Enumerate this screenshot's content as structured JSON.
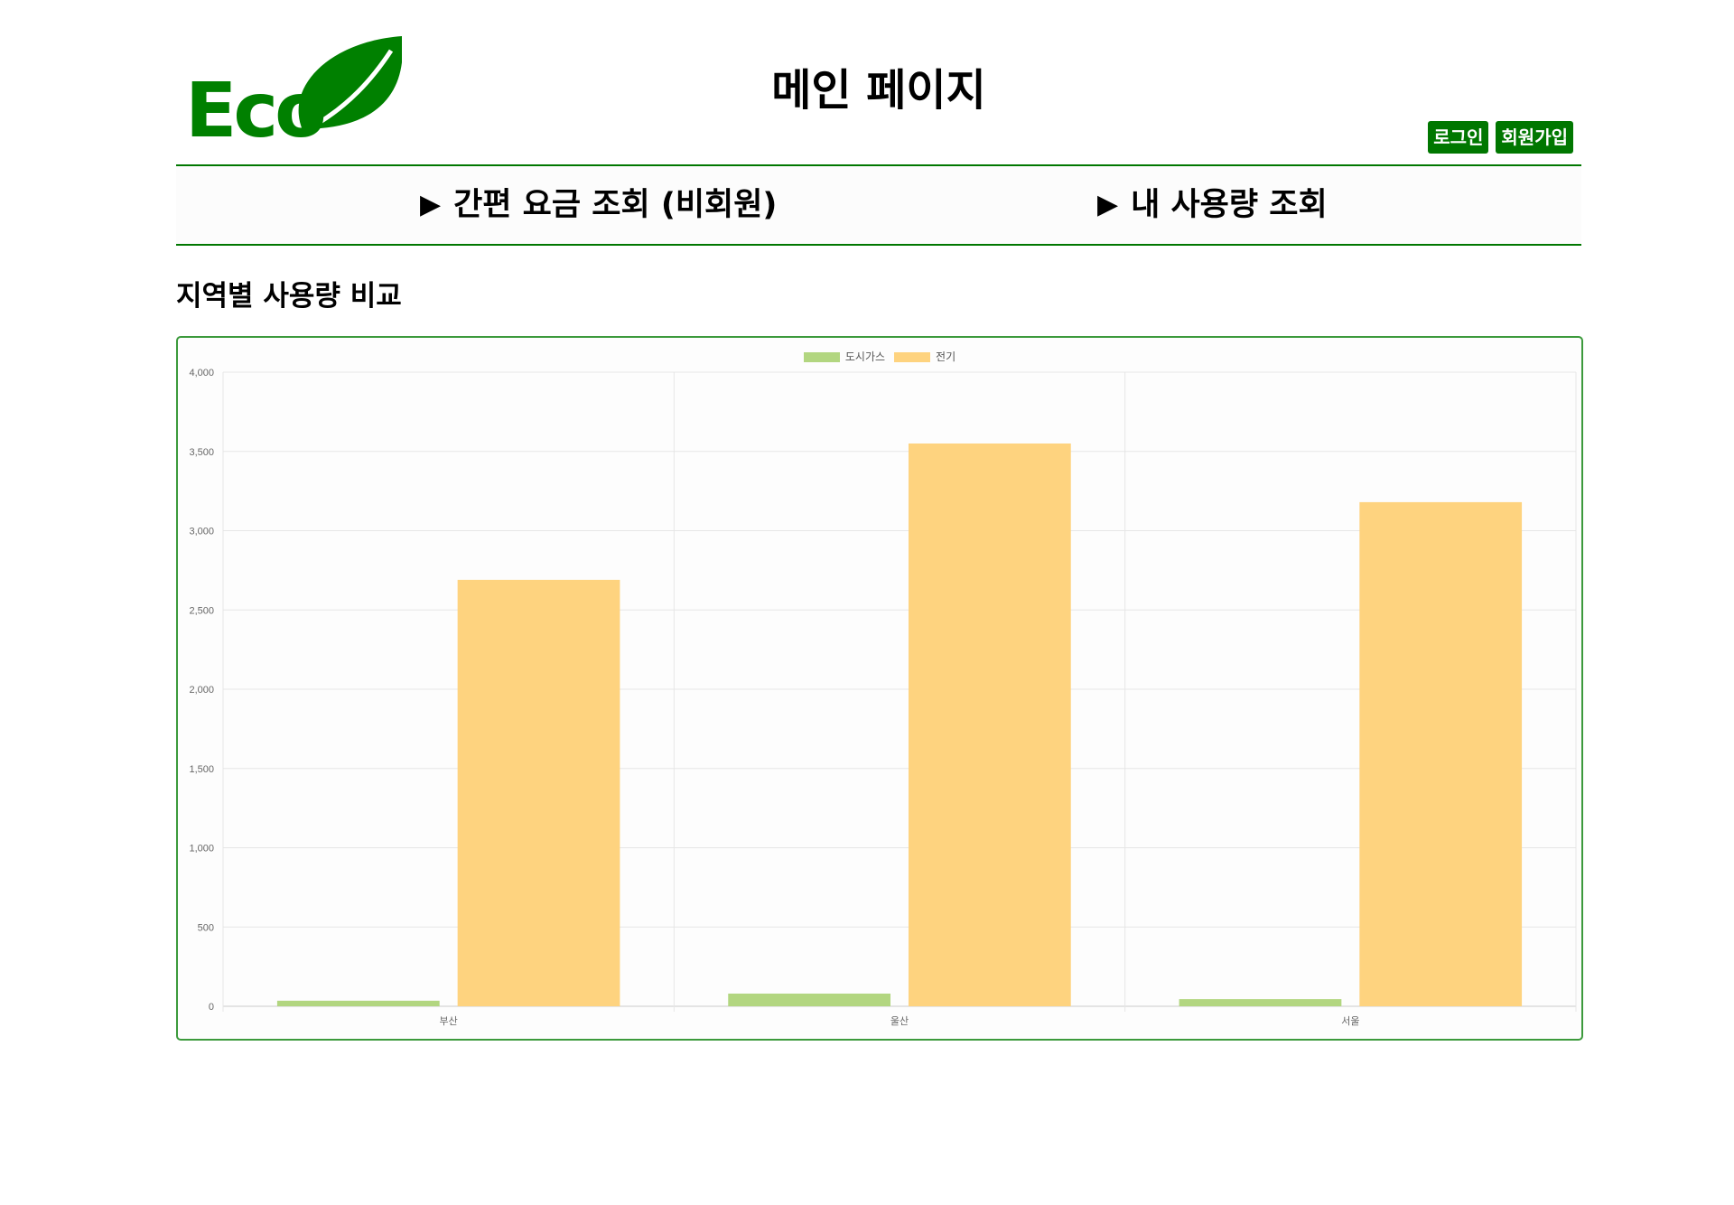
{
  "logo": {
    "text": "Eco"
  },
  "header": {
    "title": "메인 페이지"
  },
  "auth": {
    "login_label": "로그인",
    "signup_label": "회원가입"
  },
  "nav": {
    "items": [
      {
        "label": "간편 요금 조회 (비회원)",
        "icon": "play-triangle-icon"
      },
      {
        "label": "내 사용량 조회",
        "icon": "play-triangle-icon"
      }
    ]
  },
  "section": {
    "title": "지역별 사용량 비교"
  },
  "colors": {
    "brand_green": "#007700",
    "gas_series": "#b2d680",
    "electric_series": "#fed37f"
  },
  "chart_data": {
    "type": "bar",
    "categories": [
      "부산",
      "울산",
      "서울"
    ],
    "series": [
      {
        "name": "도시가스",
        "values": [
          35,
          80,
          45
        ],
        "color": "#b2d680"
      },
      {
        "name": "전기",
        "values": [
          2690,
          3550,
          3180
        ],
        "color": "#fed37f"
      }
    ],
    "ylim": [
      0,
      4000
    ],
    "yticks": [
      "0",
      "500",
      "1,000",
      "1,500",
      "2,000",
      "2,500",
      "3,000",
      "3,500",
      "4,000"
    ],
    "grid": true,
    "legend": "top-center"
  }
}
